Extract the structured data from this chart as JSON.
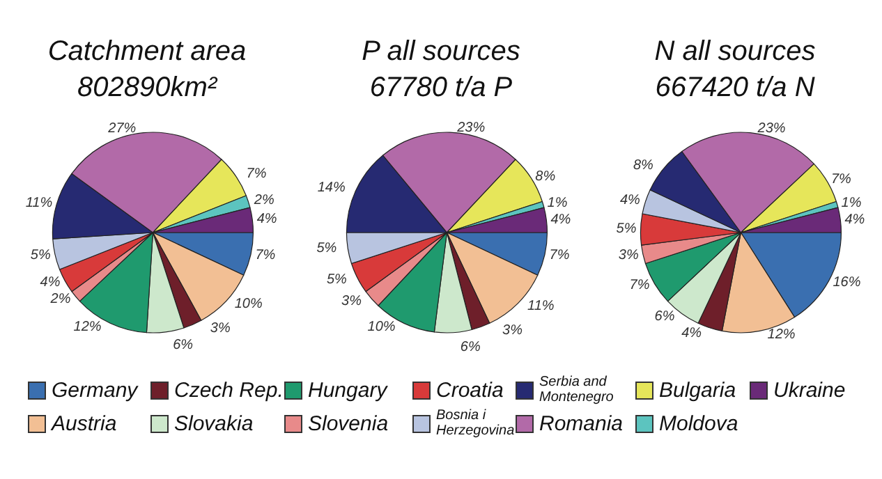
{
  "chart_data": [
    {
      "type": "pie",
      "title": "Catchment area",
      "subtitle": "802890km²",
      "categories": [
        "Germany",
        "Austria",
        "Czech Rep.",
        "Slovakia",
        "Hungary",
        "Slovenia",
        "Croatia",
        "Bosnia i Herzegovina",
        "Serbia and Montenegro",
        "Romania",
        "Bulgaria",
        "Moldova",
        "Ukraine"
      ],
      "values": [
        7,
        10,
        3,
        6,
        12,
        2,
        4,
        5,
        11,
        27,
        7,
        2,
        4
      ],
      "value_labels": [
        "7%",
        "10%",
        "3%",
        "6%",
        "12%",
        "2%",
        "4%",
        "5%",
        "11%",
        "27%",
        "7%",
        "2%",
        "4%"
      ],
      "colors": [
        "#3a6fb0",
        "#f2bf94",
        "#6e1f2a",
        "#cde8cc",
        "#1f9a6e",
        "#e88a8a",
        "#d83a3a",
        "#b8c4e0",
        "#262a72",
        "#b26aa8",
        "#e6e65a",
        "#5cc4bf",
        "#6a2a78"
      ],
      "legend": "bottom"
    },
    {
      "type": "pie",
      "title": "P all sources",
      "subtitle": "67780 t/a P",
      "values": [
        7,
        11,
        3,
        6,
        10,
        3,
        5,
        5,
        14,
        23,
        8,
        1,
        4
      ],
      "value_labels": [
        "7%",
        "11%",
        "3%",
        "6%",
        "10%",
        "3%",
        "5%",
        "5%",
        "14%",
        "23%",
        "8%",
        "1%",
        "4%"
      ],
      "colors": [
        "#3a6fb0",
        "#f2bf94",
        "#6e1f2a",
        "#cde8cc",
        "#1f9a6e",
        "#e88a8a",
        "#d83a3a",
        "#b8c4e0",
        "#262a72",
        "#b26aa8",
        "#e6e65a",
        "#5cc4bf",
        "#6a2a78"
      ]
    },
    {
      "type": "pie",
      "title": "N all sources",
      "subtitle": "667420 t/a N",
      "values": [
        16,
        12,
        4,
        6,
        7,
        3,
        5,
        4,
        8,
        23,
        7,
        1,
        4
      ],
      "value_labels": [
        "16%",
        "12%",
        "4%",
        "6%",
        "7%",
        "3%",
        "5%",
        "4%",
        "8%",
        "23%",
        "7%",
        "1%",
        "4%"
      ],
      "colors": [
        "#3a6fb0",
        "#f2bf94",
        "#6e1f2a",
        "#cde8cc",
        "#1f9a6e",
        "#e88a8a",
        "#d83a3a",
        "#b8c4e0",
        "#262a72",
        "#b26aa8",
        "#e6e65a",
        "#5cc4bf",
        "#6a2a78"
      ]
    }
  ]
}
